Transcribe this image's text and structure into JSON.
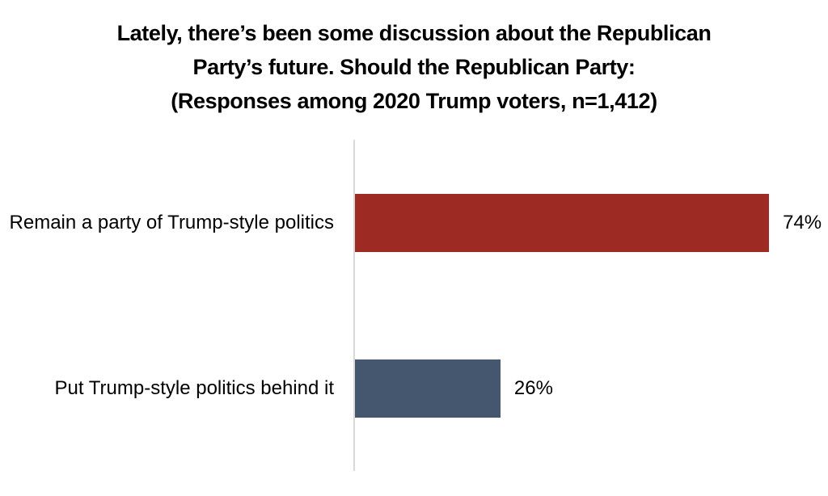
{
  "chart_data": {
    "type": "bar",
    "orientation": "horizontal",
    "title_lines": [
      "Lately, there’s been some discussion about the Republican",
      "Party’s future. Should the Republican Party:",
      "(Responses among 2020 Trump voters, n=1,412)"
    ],
    "title": "Lately, there’s been some discussion about the Republican Party’s future. Should the Republican Party: (Responses among 2020 Trump voters, n=1,412)",
    "categories": [
      "Remain a party of Trump-style politics",
      "Put Trump-style politics behind it"
    ],
    "values": [
      74,
      26
    ],
    "value_labels": [
      "74%",
      "26%"
    ],
    "bar_colors": [
      "#9e2b23",
      "#44576e"
    ],
    "xlabel": "",
    "ylabel": "",
    "xlim": [
      0,
      85
    ],
    "grid": false,
    "legend": false,
    "axis_color": "#d9d9d9",
    "background_color": "#ffffff",
    "text_color": "#000000"
  }
}
